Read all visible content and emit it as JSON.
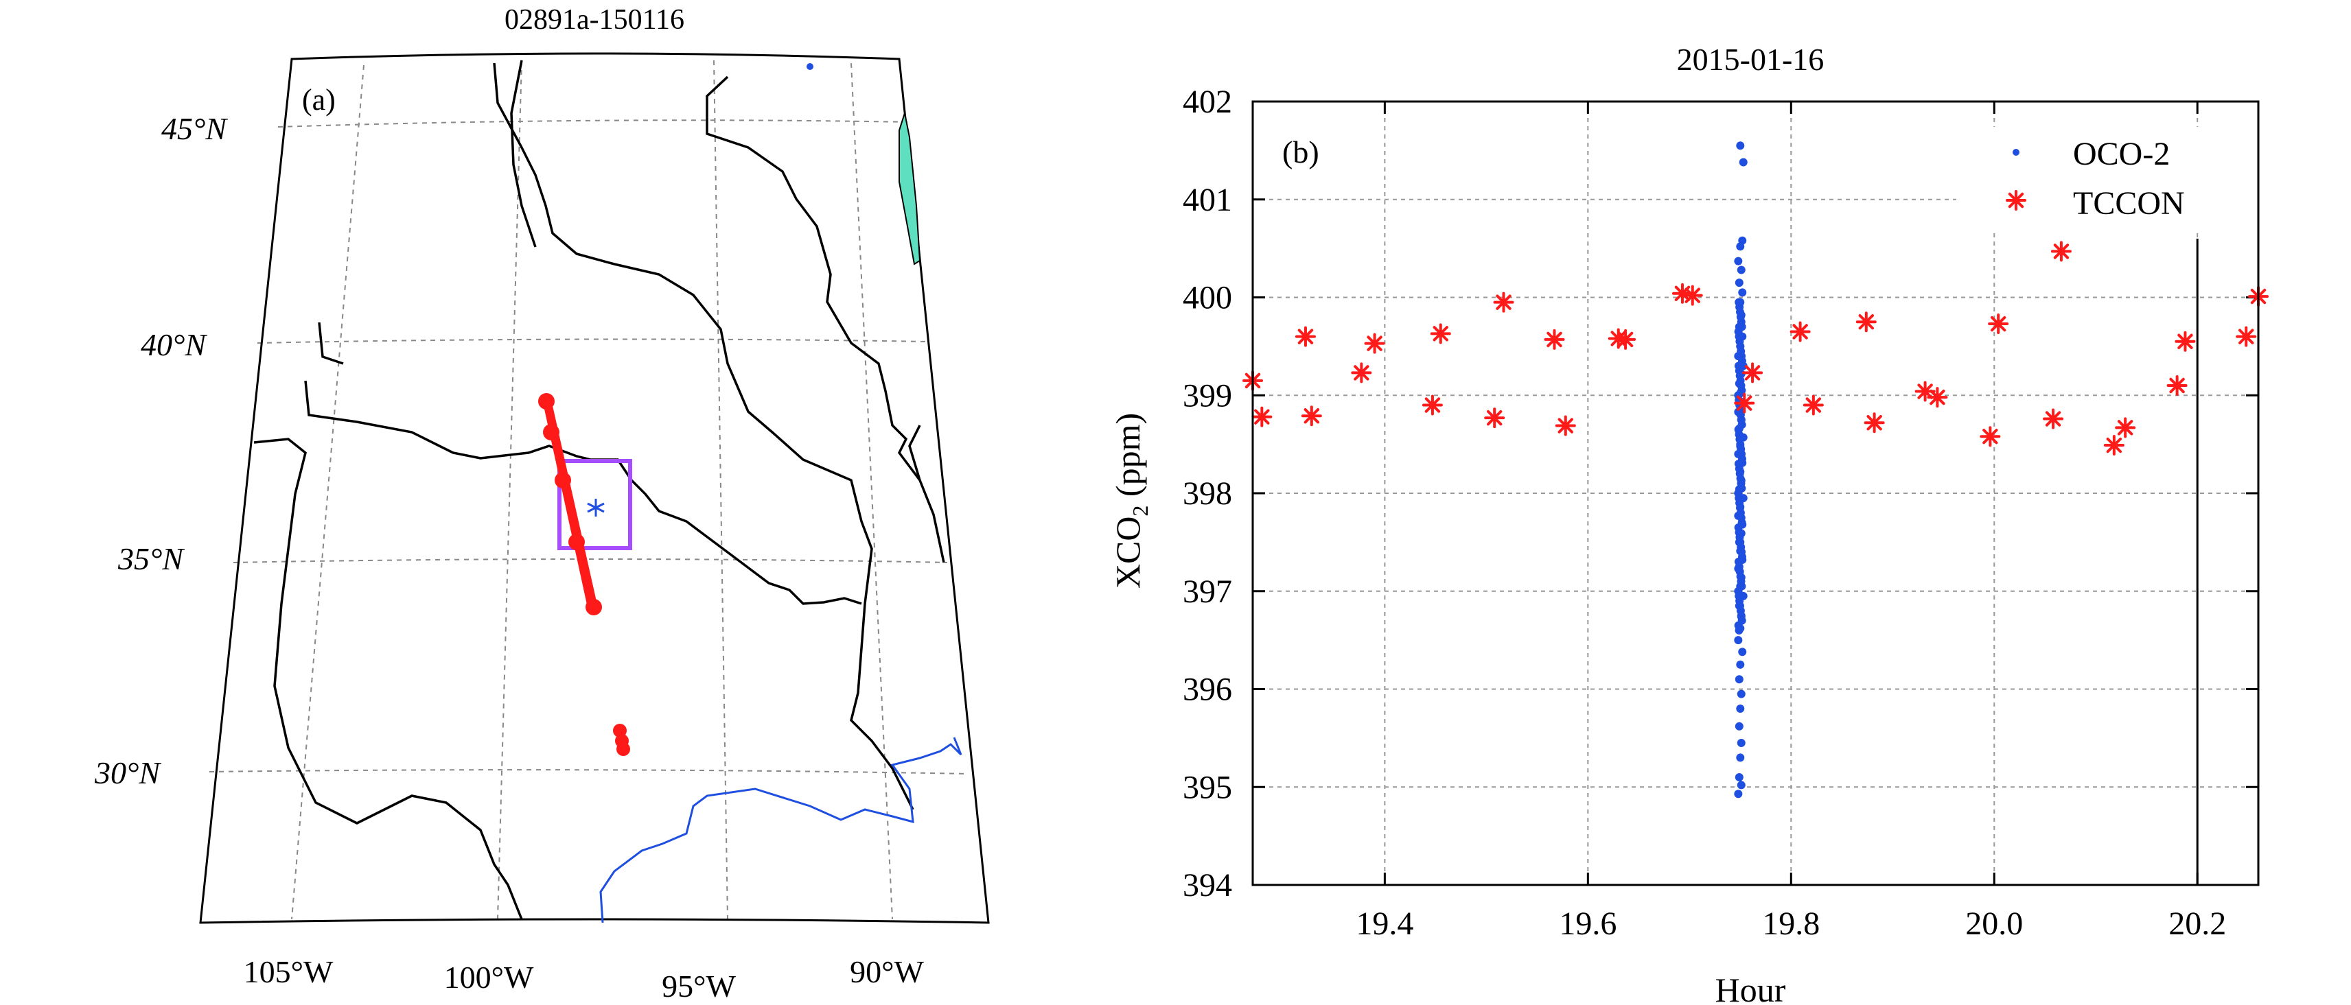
{
  "chart_data": [
    {
      "type": "map",
      "panel_label": "(a)",
      "title": "02891a-150116",
      "lat_labels": [
        "45°N",
        "40°N",
        "35°N",
        "30°N"
      ],
      "lon_labels": [
        "105°W",
        "100°W",
        "95°W",
        "90°W"
      ],
      "series": [
        {
          "name": "OCO-2 track",
          "color": "#ff1a1a"
        },
        {
          "name": "TCCON site",
          "color": "#1f4fe0"
        },
        {
          "name": "colocation box",
          "color": "#a64dff"
        },
        {
          "name": "river",
          "color": "#1f4fe0"
        },
        {
          "name": "lake",
          "color": "#5ee0c0"
        }
      ]
    },
    {
      "type": "scatter",
      "panel_label": "(b)",
      "title": "2015-01-16",
      "xlabel": "Hour",
      "ylabel": "XCO₂ (ppm)",
      "xlim": [
        19.27,
        20.26
      ],
      "ylim": [
        394,
        402
      ],
      "xticks": [
        19.4,
        19.6,
        19.8,
        20.0,
        20.2
      ],
      "xtick_labels": [
        "19.4",
        "19.6",
        "19.8",
        "20.0",
        "20.2"
      ],
      "yticks": [
        394,
        395,
        396,
        397,
        398,
        399,
        400,
        401,
        402
      ],
      "ytick_labels": [
        "394",
        "395",
        "396",
        "397",
        "398",
        "399",
        "400",
        "401",
        "402"
      ],
      "grid": true,
      "legend": "top-right",
      "vline_x": 20.2,
      "series": [
        {
          "name": "OCO-2",
          "marker": "dot",
          "color": "#1f4fe0",
          "points": [
            [
              19.75,
              401.55
            ],
            [
              19.753,
              401.38
            ],
            [
              19.752,
              400.58
            ],
            [
              19.75,
              400.52
            ],
            [
              19.748,
              400.37
            ],
            [
              19.751,
              400.28
            ],
            [
              19.749,
              400.15
            ],
            [
              19.752,
              400.05
            ],
            [
              19.75,
              399.95
            ],
            [
              19.751,
              399.82
            ],
            [
              19.749,
              399.7
            ],
            [
              19.752,
              399.6
            ],
            [
              19.75,
              399.5
            ],
            [
              19.748,
              399.4
            ],
            [
              19.753,
              399.3
            ],
            [
              19.751,
              399.22
            ],
            [
              19.749,
              399.12
            ],
            [
              19.75,
              399.02
            ],
            [
              19.752,
              398.93
            ],
            [
              19.748,
              398.83
            ],
            [
              19.751,
              398.75
            ],
            [
              19.749,
              398.66
            ],
            [
              19.753,
              398.57
            ],
            [
              19.75,
              398.48
            ],
            [
              19.748,
              398.4
            ],
            [
              19.752,
              398.31
            ],
            [
              19.75,
              398.22
            ],
            [
              19.751,
              398.13
            ],
            [
              19.749,
              398.04
            ],
            [
              19.753,
              397.95
            ],
            [
              19.75,
              397.86
            ],
            [
              19.748,
              397.77
            ],
            [
              19.752,
              397.68
            ],
            [
              19.751,
              397.59
            ],
            [
              19.749,
              397.5
            ],
            [
              19.75,
              397.41
            ],
            [
              19.752,
              397.32
            ],
            [
              19.748,
              397.23
            ],
            [
              19.751,
              397.14
            ],
            [
              19.75,
              397.05
            ],
            [
              19.753,
              396.95
            ],
            [
              19.749,
              396.85
            ],
            [
              19.751,
              396.74
            ],
            [
              19.75,
              396.62
            ],
            [
              19.748,
              396.5
            ],
            [
              19.752,
              396.38
            ],
            [
              19.75,
              396.25
            ],
            [
              19.749,
              396.1
            ],
            [
              19.751,
              395.95
            ],
            [
              19.75,
              395.8
            ],
            [
              19.749,
              395.62
            ],
            [
              19.751,
              395.45
            ],
            [
              19.75,
              395.3
            ],
            [
              19.749,
              395.1
            ],
            [
              19.751,
              395.02
            ],
            [
              19.748,
              394.93
            ]
          ]
        },
        {
          "name": "TCCON",
          "marker": "asterisk",
          "color": "#ff1a1a",
          "points": [
            [
              19.27,
              399.15
            ],
            [
              19.279,
              398.78
            ],
            [
              19.322,
              399.6
            ],
            [
              19.328,
              398.79
            ],
            [
              19.377,
              399.23
            ],
            [
              19.39,
              399.53
            ],
            [
              19.447,
              398.9
            ],
            [
              19.455,
              399.63
            ],
            [
              19.508,
              398.77
            ],
            [
              19.517,
              399.95
            ],
            [
              19.567,
              399.57
            ],
            [
              19.578,
              398.69
            ],
            [
              19.63,
              399.58
            ],
            [
              19.637,
              399.57
            ],
            [
              19.693,
              400.04
            ],
            [
              19.703,
              400.02
            ],
            [
              19.754,
              398.92
            ],
            [
              19.762,
              399.23
            ],
            [
              19.809,
              399.65
            ],
            [
              19.822,
              398.9
            ],
            [
              19.874,
              399.75
            ],
            [
              19.882,
              398.72
            ],
            [
              19.932,
              399.04
            ],
            [
              19.944,
              398.98
            ],
            [
              19.996,
              398.58
            ],
            [
              20.004,
              399.73
            ],
            [
              20.058,
              398.76
            ],
            [
              20.066,
              400.47
            ],
            [
              20.118,
              398.49
            ],
            [
              20.129,
              398.67
            ],
            [
              20.18,
              399.1
            ],
            [
              20.188,
              399.55
            ],
            [
              20.248,
              399.6
            ],
            [
              20.26,
              400.01
            ]
          ]
        }
      ]
    }
  ]
}
